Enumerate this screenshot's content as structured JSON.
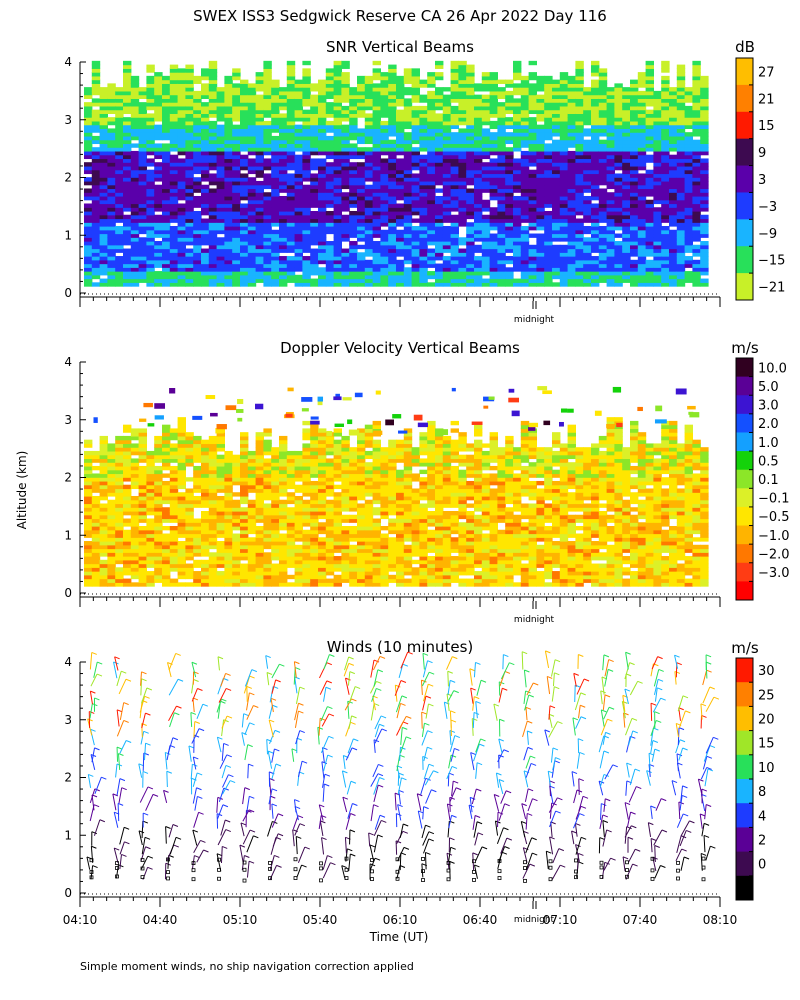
{
  "figure": {
    "title": "SWEX ISS3 Sedgwick Reserve CA  26 Apr 2022 Day 116",
    "ylabel": "Altitude (km)",
    "xlabel": "Time (UT)",
    "footnote": "Simple moment winds, no ship navigation correction applied",
    "midnight_label": "midnight"
  },
  "chart_data": [
    {
      "type": "heatmap",
      "title": "SNR Vertical Beams",
      "units": "dB",
      "ylim": [
        0,
        4
      ],
      "yticks": [
        "0",
        "1",
        "2",
        "3",
        "4"
      ],
      "colorbar_labels": [
        "27",
        "21",
        "15",
        "9",
        "3",
        "−3",
        "−9",
        "−15",
        "−21"
      ],
      "colorbar_colors": [
        "#ffbe00",
        "#ff8000",
        "#ff1a00",
        "#3d0a50",
        "#5a00aa",
        "#1e3cff",
        "#19b4ff",
        "#28e05a",
        "#c8f028"
      ]
    },
    {
      "type": "heatmap",
      "title": "Doppler Velocity Vertical Beams",
      "units": "m/s",
      "ylim": [
        0,
        4
      ],
      "yticks": [
        "0",
        "1",
        "2",
        "3",
        "4"
      ],
      "colorbar_labels": [
        "10.0",
        "5.0",
        "3.0",
        "2.0",
        "1.0",
        "0.5",
        "0.1",
        "−0.1",
        "−0.5",
        "−1.0",
        "−2.0",
        "−3.0"
      ],
      "colorbar_colors": [
        "#300020",
        "#5a0096",
        "#3c14d2",
        "#1450ff",
        "#14a0ff",
        "#14d20a",
        "#8ce628",
        "#dcf028",
        "#ffe600",
        "#ffb400",
        "#ff7800",
        "#ff3c14",
        "#ff0000"
      ]
    },
    {
      "type": "scatter",
      "title": "Winds (10 minutes)",
      "units": "m/s",
      "ylim": [
        0,
        4
      ],
      "yticks": [
        "0",
        "1",
        "2",
        "3",
        "4"
      ],
      "xticks": [
        "04:10",
        "04:40",
        "05:10",
        "05:40",
        "06:10",
        "06:40",
        "07:10",
        "07:40",
        "08:10"
      ],
      "colorbar_labels": [
        "30",
        "25",
        "20",
        "15",
        "10",
        "8",
        "4",
        "2",
        "0"
      ],
      "colorbar_colors": [
        "#ff1a00",
        "#ff8000",
        "#ffbe00",
        "#a0e628",
        "#28e05a",
        "#19b4ff",
        "#1e3cff",
        "#5a0096",
        "#3d0a50",
        "#000000"
      ]
    }
  ]
}
